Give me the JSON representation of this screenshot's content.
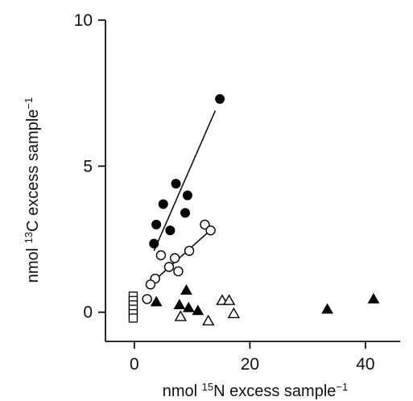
{
  "chart_data": {
    "type": "scatter",
    "title": "",
    "xlabel_parts": {
      "pre": "nmol ",
      "sup": "15",
      "post": "N excess sample",
      "unit_sup": "−1"
    },
    "ylabel_parts": {
      "pre": "nmol ",
      "sup": "13",
      "post": "C excess sample",
      "unit_sup": "−1"
    },
    "xlim": [
      -5,
      46
    ],
    "ylim": [
      -1,
      10
    ],
    "x_ticks": [
      0,
      20,
      40
    ],
    "y_ticks": [
      0,
      5,
      10
    ],
    "grid": false,
    "series": [
      {
        "marker": "filled-circle",
        "points": [
          [
            14.8,
            7.3
          ],
          [
            7.2,
            4.4
          ],
          [
            9.2,
            4.0
          ],
          [
            5.0,
            3.7
          ],
          [
            8.8,
            3.4
          ],
          [
            3.8,
            3.0
          ],
          [
            6.2,
            2.8
          ],
          [
            3.4,
            2.35
          ]
        ],
        "fit": [
          [
            3.4,
            2.1
          ],
          [
            14.0,
            6.9
          ]
        ]
      },
      {
        "marker": "open-circle",
        "points": [
          [
            12.2,
            3.0
          ],
          [
            13.2,
            2.8
          ],
          [
            4.6,
            1.95
          ],
          [
            7.0,
            1.85
          ],
          [
            9.5,
            2.1
          ],
          [
            6.0,
            1.55
          ],
          [
            3.6,
            1.15
          ],
          [
            7.6,
            1.4
          ],
          [
            2.8,
            0.95
          ],
          [
            2.2,
            0.45
          ]
        ],
        "fit": [
          [
            2.7,
            0.95
          ],
          [
            13.4,
            2.85
          ]
        ]
      },
      {
        "marker": "filled-triangle",
        "points": [
          [
            3.8,
            0.35
          ],
          [
            7.8,
            0.25
          ],
          [
            9.0,
            0.75
          ],
          [
            9.4,
            0.15
          ],
          [
            11.0,
            0.05
          ],
          [
            33.4,
            0.1
          ],
          [
            41.4,
            0.45
          ]
        ]
      },
      {
        "marker": "open-triangle",
        "points": [
          [
            8.0,
            -0.15
          ],
          [
            12.8,
            -0.3
          ],
          [
            15.2,
            0.4
          ],
          [
            16.4,
            0.4
          ],
          [
            17.2,
            -0.05
          ]
        ]
      },
      {
        "marker": "open-square",
        "points": [
          [
            -0.2,
            0.55
          ],
          [
            -0.2,
            0.4
          ],
          [
            -0.2,
            0.25
          ],
          [
            -0.2,
            0.1
          ],
          [
            -0.2,
            -0.05
          ],
          [
            -0.2,
            -0.2
          ]
        ]
      }
    ]
  }
}
